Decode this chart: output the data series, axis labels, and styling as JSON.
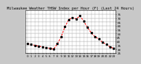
{
  "title": "Milwaukee Weather THSW Index per Hour (F) (Last 24 Hours)",
  "x_values": [
    0,
    1,
    2,
    3,
    4,
    5,
    6,
    7,
    8,
    9,
    10,
    11,
    12,
    13,
    14,
    15,
    16,
    17,
    18,
    19,
    20,
    21,
    22,
    23
  ],
  "y_values": [
    37,
    36,
    35,
    34,
    33,
    32,
    31,
    30,
    37,
    46,
    59,
    68,
    71,
    69,
    73,
    66,
    58,
    51,
    46,
    43,
    39,
    36,
    33,
    31
  ],
  "line_color": "#ff0000",
  "marker_color": "#000000",
  "background_color": "#c8c8c8",
  "plot_bg_color": "#ffffff",
  "grid_color": "#888888",
  "title_color": "#000000",
  "title_fontsize": 4.0,
  "ylim": [
    25,
    80
  ],
  "xlim": [
    -0.5,
    23.5
  ],
  "ytick_labels": [
    "75",
    "70",
    "65",
    "60",
    "55",
    "50",
    "45",
    "40",
    "35",
    "30",
    "25"
  ],
  "ytick_values": [
    75,
    70,
    65,
    60,
    55,
    50,
    45,
    40,
    35,
    30,
    25
  ],
  "xtick_values": [
    0,
    1,
    2,
    3,
    4,
    5,
    6,
    7,
    8,
    9,
    10,
    11,
    12,
    13,
    14,
    15,
    16,
    17,
    18,
    19,
    20,
    21,
    22,
    23
  ],
  "tick_fontsize": 3.0,
  "line_width": 0.8,
  "marker_size": 1.8,
  "dpi": 100
}
